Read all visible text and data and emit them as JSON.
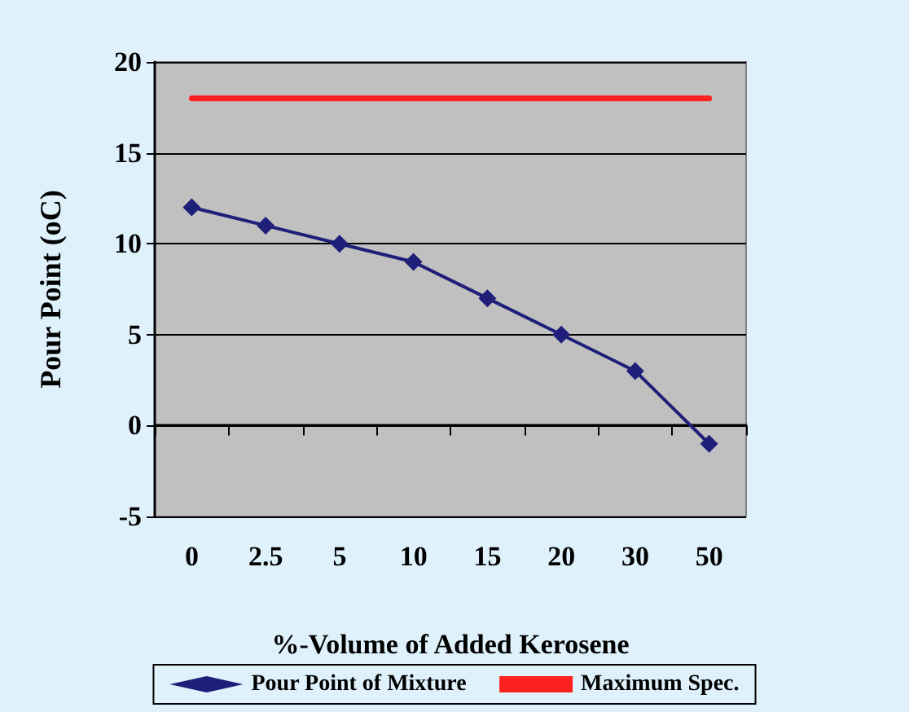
{
  "chart_data": {
    "type": "line",
    "xlabel": "%-Volume of Added Kerosene",
    "ylabel": "Pour Point (oC)",
    "categories": [
      "0",
      "2.5",
      "5",
      "10",
      "15",
      "20",
      "30",
      "50"
    ],
    "series": [
      {
        "name": "Pour Point of Mixture",
        "color": "#1f1f7a",
        "values": [
          12,
          11,
          10,
          9,
          7,
          5,
          3,
          -1
        ],
        "marker": "diamond"
      },
      {
        "name": "Maximum Spec.",
        "color": "#ff2020",
        "values": [
          18,
          18,
          18,
          18,
          18,
          18,
          18,
          18
        ],
        "marker": "none"
      }
    ],
    "ylim": [
      -5,
      20
    ],
    "yticks": [
      -5,
      0,
      5,
      10,
      15,
      20
    ],
    "grid": "y",
    "legend": "bottom",
    "line_style": "solid"
  }
}
